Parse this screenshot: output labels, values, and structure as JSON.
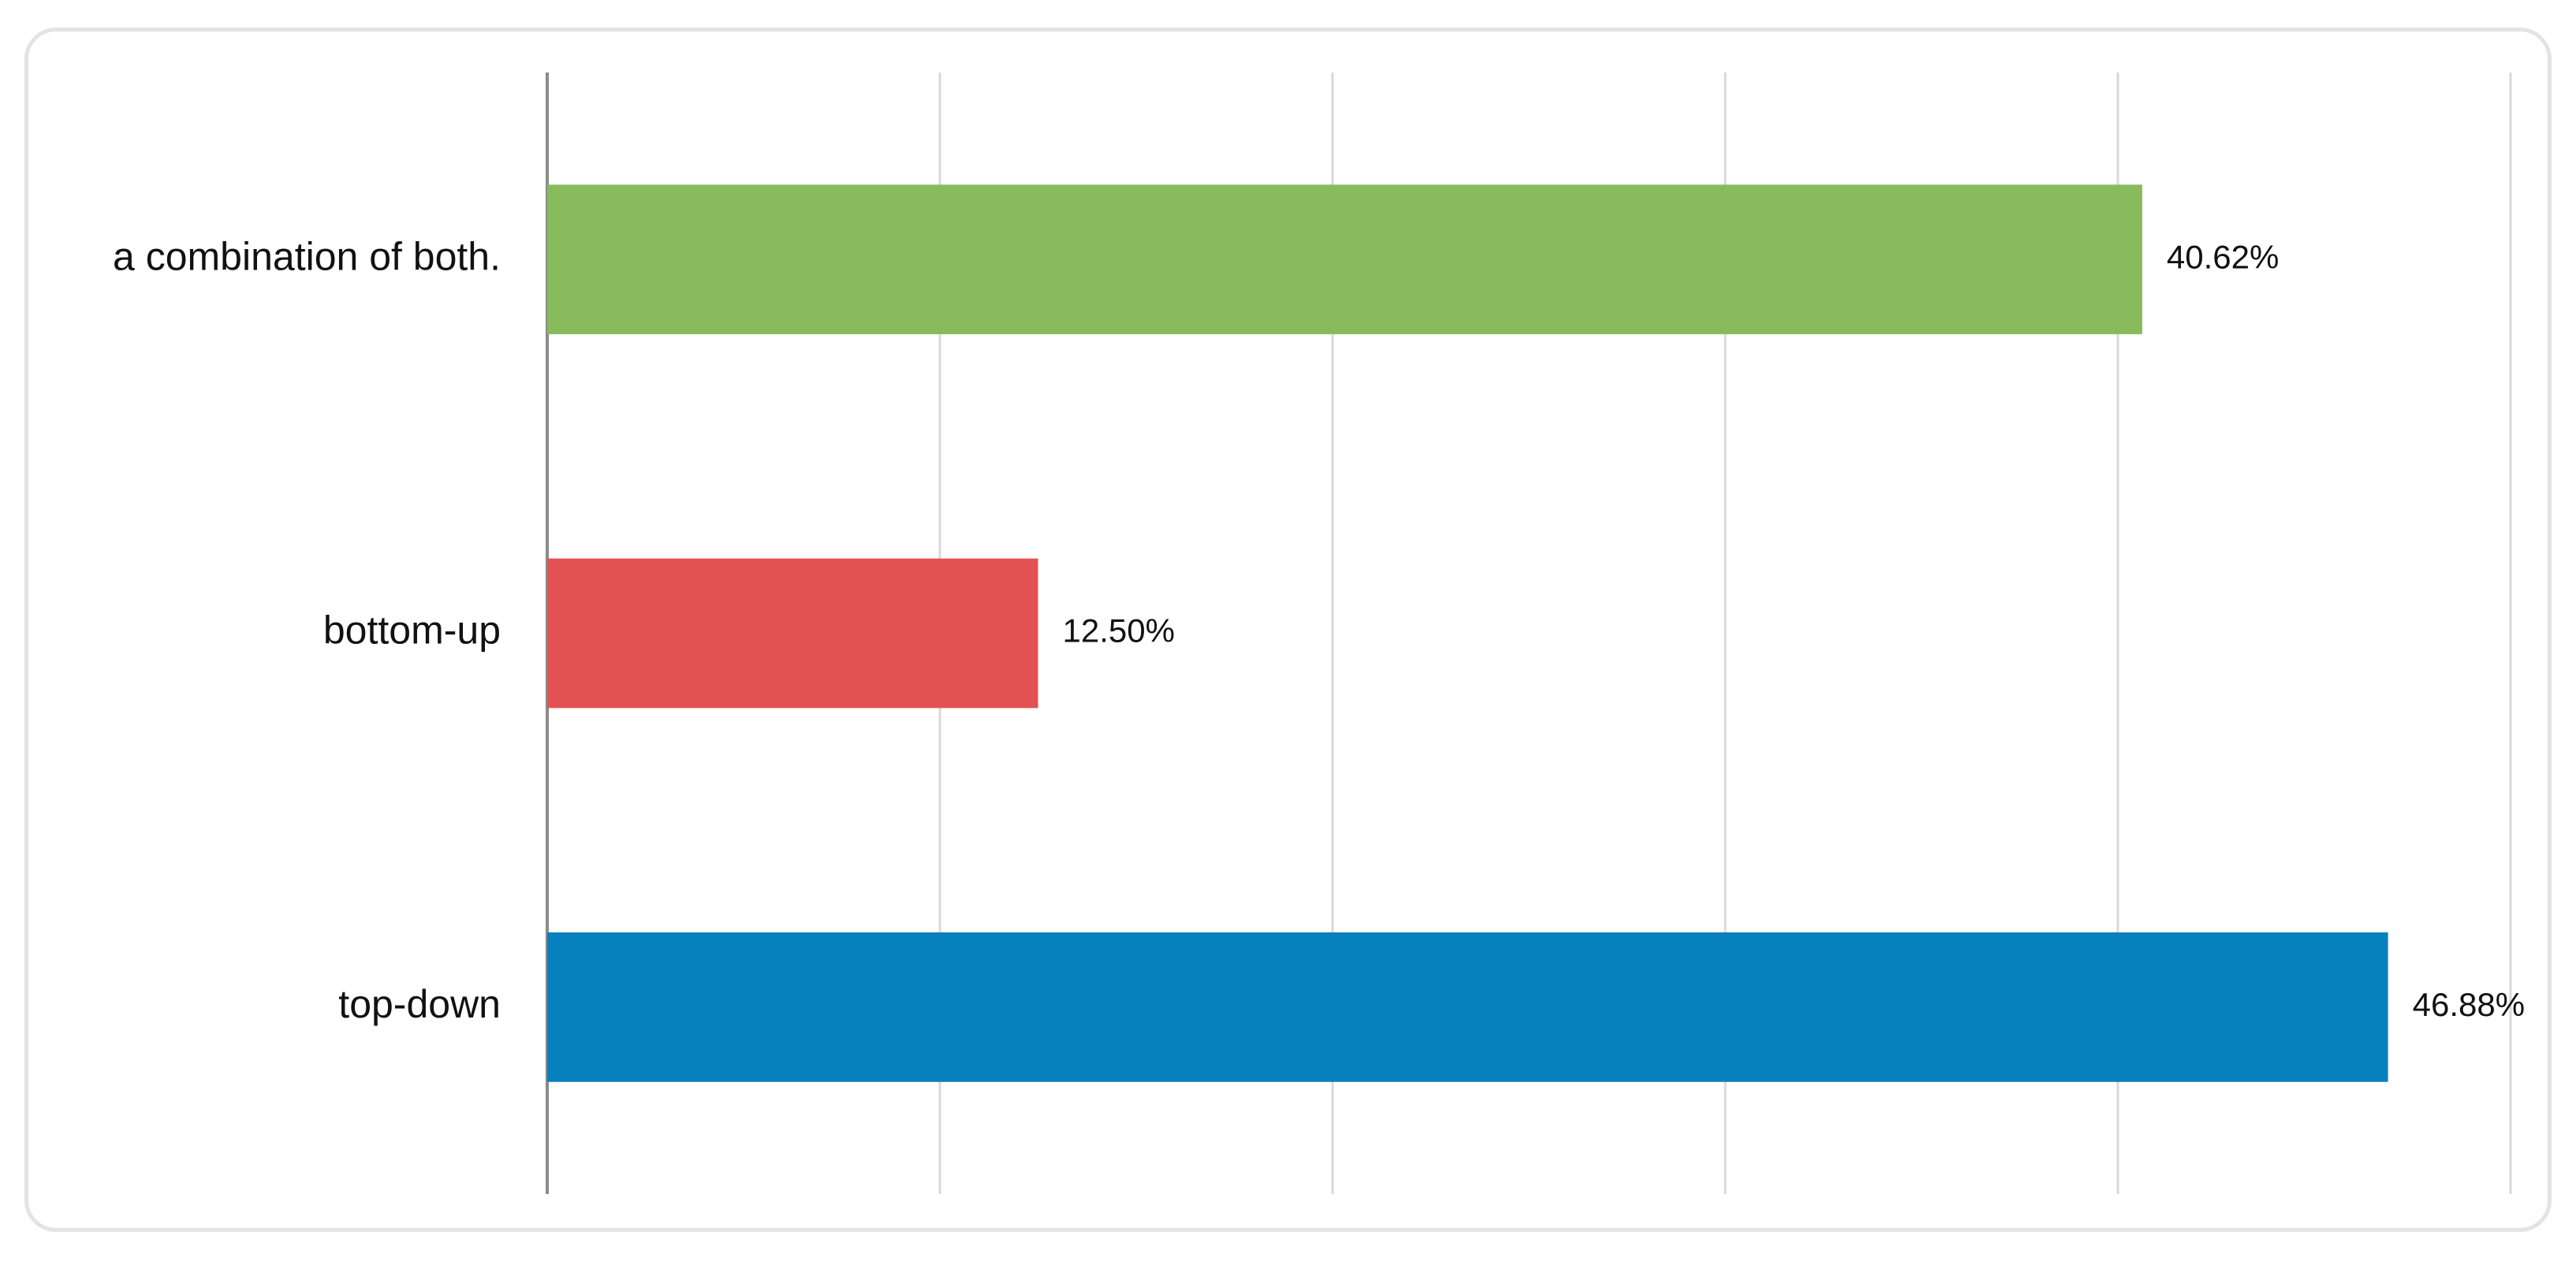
{
  "chart_data": {
    "type": "bar",
    "orientation": "horizontal",
    "categories": [
      "a combination of both.",
      "bottom-up",
      "top-down"
    ],
    "values": [
      40.62,
      12.5,
      46.88
    ],
    "value_labels": [
      "40.62%",
      "12.50%",
      "46.88%"
    ],
    "colors": [
      "#87bb5b",
      "#e35252",
      "#0780be"
    ],
    "xlim": [
      0,
      50
    ],
    "xticks": [
      0,
      10,
      20,
      30,
      40,
      50
    ],
    "grid": true
  }
}
